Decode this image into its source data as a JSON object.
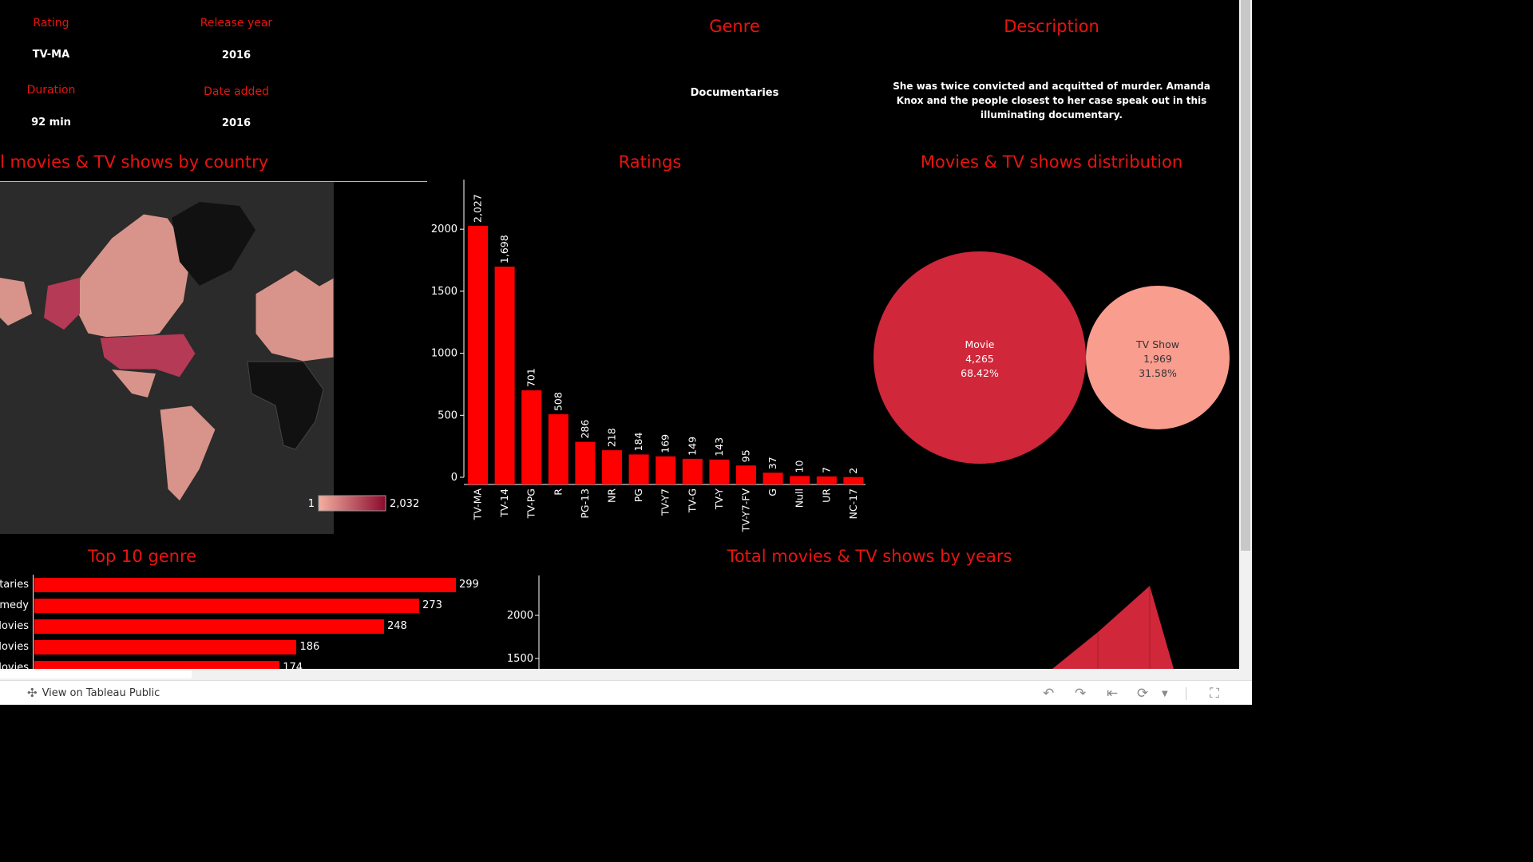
{
  "details": {
    "rating_label": "Rating",
    "rating_value": "TV-MA",
    "release_label": "Release year",
    "release_value": "2016",
    "duration_label": "Duration",
    "duration_value": "92 min",
    "date_added_label": "Date added",
    "date_added_value": "2016",
    "genre_label": "Genre",
    "genre_value": "Documentaries",
    "description_label": "Description",
    "description_value": "She was twice convicted and acquitted of murder. Amanda Knox and the people closest to her case speak out in this illuminating documentary."
  },
  "map": {
    "title": "l movies & TV shows by country",
    "legend_min": "1",
    "legend_max": "2,032"
  },
  "ratings": {
    "title": "Ratings"
  },
  "distribution": {
    "title": "Movies & TV shows distribution",
    "movie": {
      "name": "Movie",
      "count": "4,265",
      "pct": "68.42%"
    },
    "tv": {
      "name": "TV Show",
      "count": "1,969",
      "pct": "31.58%"
    }
  },
  "genre": {
    "title": "Top 10 genre",
    "items": [
      {
        "label": "taries",
        "value": "299"
      },
      {
        "label": "omedy",
        "value": "273"
      },
      {
        "label": "Movies",
        "value": "248"
      },
      {
        "label": "Movies",
        "value": "186"
      },
      {
        "label": "Movies",
        "value": "174"
      }
    ]
  },
  "years": {
    "title": "Total movies & TV shows by years",
    "ticks": [
      "2000",
      "1500"
    ]
  },
  "toolbar": {
    "view_label": "View on Tableau Public"
  },
  "colors": {
    "accent": "#e8140f",
    "bar": "#ff0000",
    "movie": "#d0273a",
    "tv": "#f99d8f"
  },
  "chart_data": [
    {
      "type": "bar",
      "title": "Ratings",
      "categories": [
        "TV-MA",
        "TV-14",
        "TV-PG",
        "R",
        "PG-13",
        "NR",
        "PG",
        "TV-Y7",
        "TV-G",
        "TV-Y",
        "TV-Y7-FV",
        "G",
        "Null",
        "UR",
        "NC-17"
      ],
      "values": [
        2027,
        1698,
        701,
        508,
        286,
        218,
        184,
        169,
        149,
        143,
        95,
        37,
        10,
        7,
        2
      ],
      "value_labels": [
        "2,027",
        "1,698",
        "701",
        "508",
        "286",
        "218",
        "184",
        "169",
        "149",
        "143",
        "95",
        "37",
        "10",
        "7",
        "2"
      ],
      "yticks": [
        "0",
        "500",
        "1000",
        "1500",
        "2000"
      ],
      "ylim": [
        0,
        2400
      ]
    },
    {
      "type": "bar",
      "title": "Top 10 genre",
      "orientation": "horizontal",
      "values": [
        299,
        273,
        248,
        186,
        174
      ]
    },
    {
      "type": "pie",
      "title": "Movies & TV shows distribution",
      "categories": [
        "Movie",
        "TV Show"
      ],
      "values": [
        4265,
        1969
      ]
    }
  ]
}
